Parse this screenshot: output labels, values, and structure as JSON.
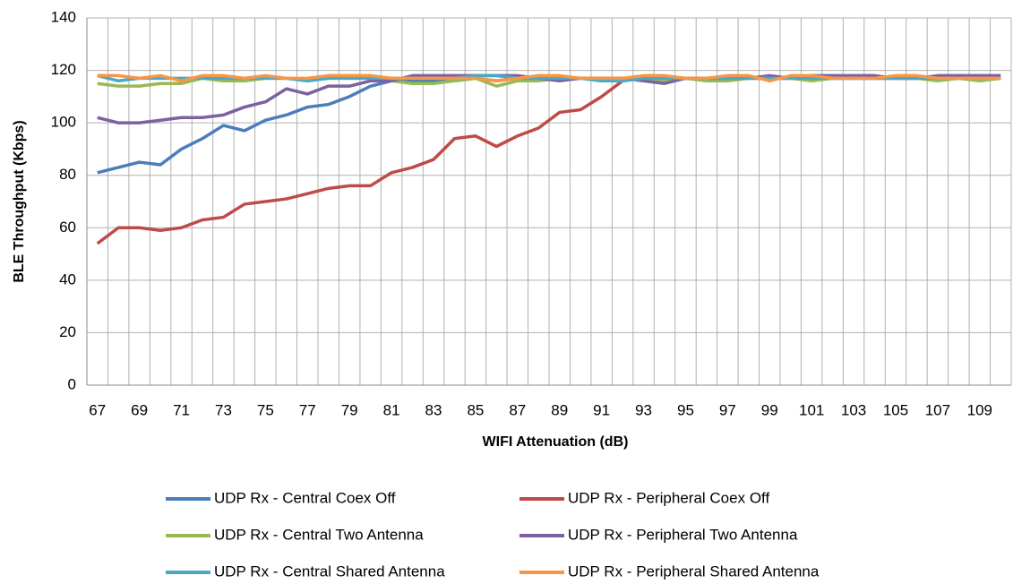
{
  "chart_data": {
    "type": "line",
    "xlabel": "WIFI Attenuation (dB)",
    "ylabel": "BLE Throughput (Kbps)",
    "categories": [
      "67",
      null,
      "69",
      null,
      "71",
      null,
      "73",
      null,
      "75",
      null,
      "77",
      null,
      "79",
      null,
      "81",
      null,
      "83",
      null,
      "85",
      null,
      "87",
      null,
      "89",
      null,
      "91",
      null,
      "93",
      null,
      "95",
      null,
      "97",
      null,
      "99",
      null,
      "101",
      null,
      "103",
      null,
      "105",
      null,
      "107",
      null,
      "109",
      null
    ],
    "ylim": [
      0,
      140
    ],
    "yticks": [
      0,
      20,
      40,
      60,
      80,
      100,
      120,
      140
    ],
    "grid": true,
    "series": [
      {
        "name": "UDP Rx - Central Coex Off",
        "color": "#4a7ebb",
        "values": [
          81,
          83,
          85,
          84,
          90,
          94,
          99,
          97,
          101,
          103,
          106,
          107,
          110,
          114,
          116,
          116,
          116,
          116,
          117,
          116,
          117,
          117,
          117,
          117,
          117,
          117,
          117,
          116,
          117,
          117,
          117,
          117,
          117,
          117,
          117,
          117,
          117,
          117,
          117,
          117,
          117,
          117,
          117,
          117
        ]
      },
      {
        "name": "UDP Rx - Peripheral Coex Off",
        "color": "#be4b48",
        "values": [
          54,
          60,
          60,
          59,
          60,
          63,
          64,
          69,
          70,
          71,
          73,
          75,
          76,
          76,
          81,
          83,
          86,
          94,
          95,
          91,
          95,
          98,
          104,
          105,
          110,
          116,
          117,
          117,
          117,
          117,
          117,
          117,
          117,
          117,
          117,
          117,
          117,
          117,
          117,
          117,
          117,
          117,
          117,
          117
        ]
      },
      {
        "name": "UDP Rx - Central Two Antenna",
        "color": "#98b954",
        "values": [
          115,
          114,
          114,
          115,
          115,
          117,
          116,
          116,
          117,
          117,
          116,
          117,
          117,
          117,
          116,
          115,
          115,
          116,
          117,
          114,
          116,
          116,
          117,
          117,
          116,
          116,
          117,
          116,
          117,
          116,
          116,
          117,
          117,
          117,
          116,
          117,
          117,
          117,
          117,
          117,
          116,
          117,
          116,
          117
        ]
      },
      {
        "name": "UDP Rx - Peripheral Two Antenna",
        "color": "#7d60a0",
        "values": [
          102,
          100,
          100,
          101,
          102,
          102,
          103,
          106,
          108,
          113,
          111,
          114,
          114,
          116,
          116,
          118,
          118,
          118,
          118,
          118,
          118,
          117,
          116,
          117,
          117,
          117,
          116,
          115,
          117,
          117,
          117,
          117,
          118,
          117,
          118,
          118,
          118,
          118,
          117,
          117,
          118,
          118,
          118,
          118
        ]
      },
      {
        "name": "UDP Rx - Central Shared Antenna",
        "color": "#46aac5",
        "values": [
          118,
          116,
          117,
          117,
          117,
          117,
          117,
          117,
          117,
          117,
          116,
          117,
          117,
          117,
          117,
          117,
          117,
          117,
          118,
          118,
          117,
          117,
          117,
          117,
          116,
          116,
          117,
          117,
          117,
          117,
          117,
          117,
          117,
          117,
          117,
          117,
          117,
          117,
          117,
          117,
          117,
          117,
          117,
          117
        ]
      },
      {
        "name": "UDP Rx - Peripheral Shared Antenna",
        "color": "#f79646",
        "values": [
          118,
          118,
          117,
          118,
          116,
          118,
          118,
          117,
          118,
          117,
          117,
          118,
          118,
          118,
          117,
          117,
          117,
          117,
          117,
          116,
          117,
          118,
          118,
          117,
          117,
          117,
          118,
          118,
          117,
          117,
          118,
          118,
          116,
          118,
          118,
          117,
          117,
          117,
          118,
          118,
          117,
          117,
          117,
          117
        ]
      }
    ]
  }
}
